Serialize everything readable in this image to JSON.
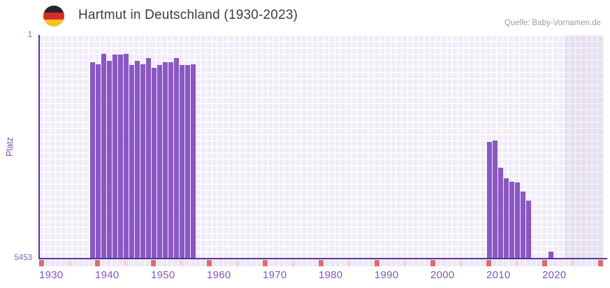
{
  "header": {
    "title": "Hartmut in Deutschland (1930-2023)",
    "source": "Quelle: Baby-Vornamen.de",
    "flag_icon": "germany-flag-icon"
  },
  "y_axis": {
    "label": "Platz",
    "top_tick": "1",
    "bottom_tick": "5453"
  },
  "x_axis": {
    "tick_labels": [
      "1930",
      "1940",
      "1950",
      "1960",
      "1970",
      "1980",
      "1990",
      "2000",
      "2010",
      "2020"
    ],
    "first_year": 1930,
    "last_year": 2030,
    "decade_marker_years_end_in": 0,
    "half_decade_marker_years_end_in": 5
  },
  "colors": {
    "bar": "#8a57c5",
    "plot_cell": "#f0ecf8",
    "grid_line": "#ffffff",
    "axis_line": "#52339b",
    "axis_label": "#8465c4",
    "x_label": "#7d57c0",
    "strip_default": "#ece7f5",
    "strip_half_decade": "#f3d7df",
    "strip_decade": "#e0696e",
    "title_text": "#3d3d3d",
    "source_text": "#9e9e9e",
    "flag_black": "#262626",
    "flag_red": "#d82c2c",
    "flag_gold": "#f7c520"
  },
  "chart_data": {
    "type": "bar",
    "title": "Hartmut in Deutschland (1930-2023)",
    "xlabel": "",
    "ylabel": "Platz",
    "ylim": [
      1,
      5453
    ],
    "y_axis_inverted": true,
    "x_visible_range": [
      1930,
      2030
    ],
    "future_shade_from_year": 2024,
    "grid": true,
    "legend": false,
    "points": [
      {
        "year": 1939,
        "platz": 673
      },
      {
        "year": 1940,
        "platz": 713
      },
      {
        "year": 1941,
        "platz": 457
      },
      {
        "year": 1942,
        "platz": 628
      },
      {
        "year": 1943,
        "platz": 484
      },
      {
        "year": 1944,
        "platz": 484
      },
      {
        "year": 1945,
        "platz": 457
      },
      {
        "year": 1946,
        "platz": 730
      },
      {
        "year": 1947,
        "platz": 633
      },
      {
        "year": 1948,
        "platz": 718
      },
      {
        "year": 1949,
        "platz": 570
      },
      {
        "year": 1950,
        "platz": 798
      },
      {
        "year": 1951,
        "platz": 740
      },
      {
        "year": 1952,
        "platz": 673
      },
      {
        "year": 1953,
        "platz": 673
      },
      {
        "year": 1954,
        "platz": 559
      },
      {
        "year": 1955,
        "platz": 730
      },
      {
        "year": 1956,
        "platz": 730
      },
      {
        "year": 1957,
        "platz": 718
      },
      {
        "year": 2010,
        "platz": 2610
      },
      {
        "year": 2011,
        "platz": 2581
      },
      {
        "year": 2012,
        "platz": 3247
      },
      {
        "year": 2013,
        "platz": 3504
      },
      {
        "year": 2014,
        "platz": 3589
      },
      {
        "year": 2015,
        "platz": 3606
      },
      {
        "year": 2016,
        "platz": 3834
      },
      {
        "year": 2017,
        "platz": 4045
      },
      {
        "year": 2021,
        "platz": 5293
      }
    ]
  }
}
